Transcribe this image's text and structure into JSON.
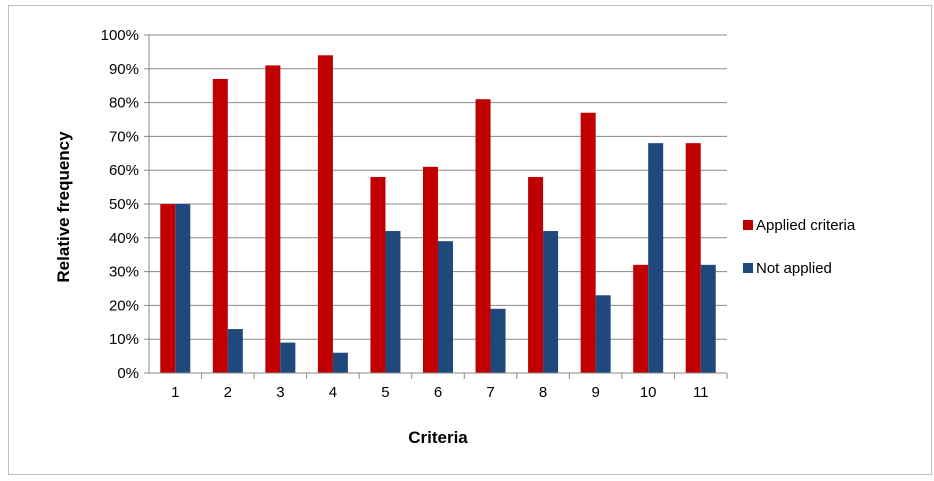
{
  "chart_data": {
    "type": "bar",
    "title": "",
    "xlabel": "Criteria",
    "ylabel": "Relative frequency",
    "categories": [
      "1",
      "2",
      "3",
      "4",
      "5",
      "6",
      "7",
      "8",
      "9",
      "10",
      "11"
    ],
    "series": [
      {
        "name": "Applied criteria",
        "color": "#c00000",
        "values": [
          50,
          87,
          91,
          94,
          58,
          61,
          81,
          58,
          77,
          32,
          68
        ]
      },
      {
        "name": "Not applied",
        "color": "#1f497d",
        "values": [
          50,
          13,
          9,
          6,
          42,
          39,
          19,
          42,
          23,
          68,
          32
        ]
      }
    ],
    "ylim": [
      0,
      100
    ],
    "yticks": [
      "0%",
      "10%",
      "20%",
      "30%",
      "40%",
      "50%",
      "60%",
      "70%",
      "80%",
      "90%",
      "100%"
    ],
    "grid": true,
    "legend_position": "right"
  }
}
